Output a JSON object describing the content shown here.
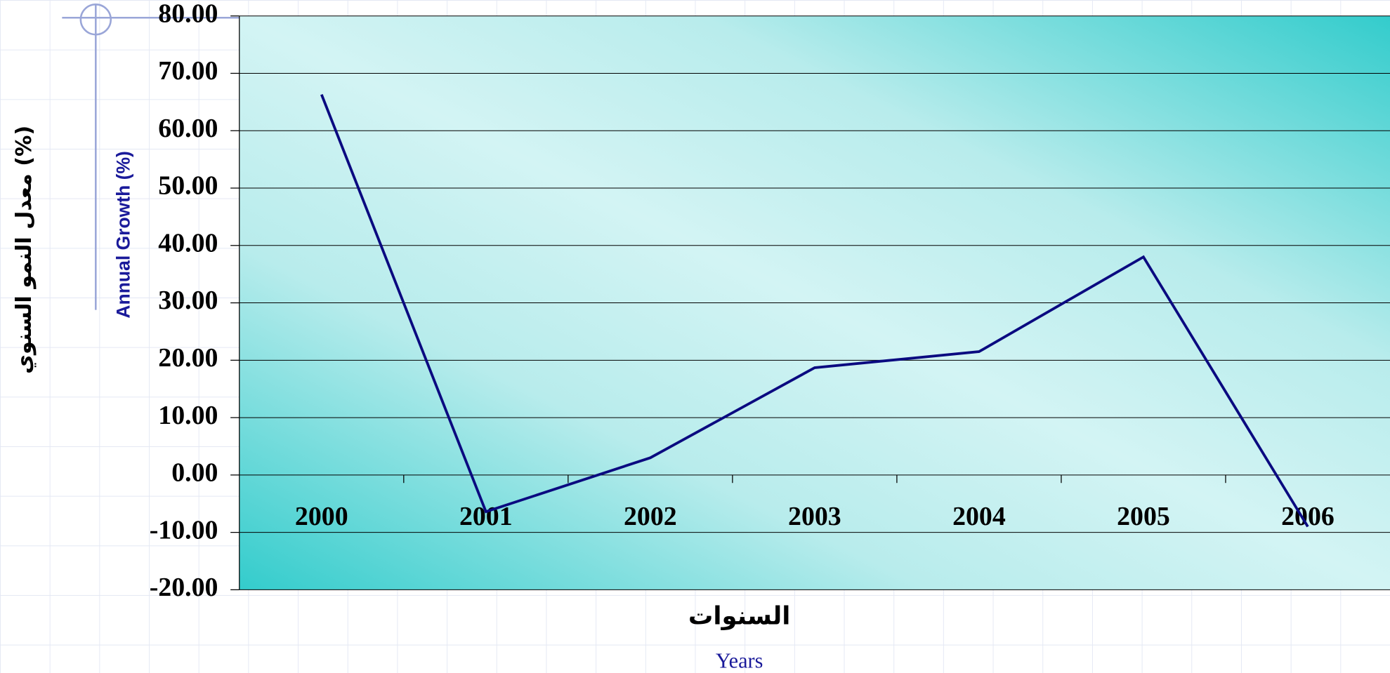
{
  "chart_data": {
    "type": "line",
    "y_label": "معدل النمو السنوي (%)",
    "y_label_en": "Annual Growth (%)",
    "x_label": "السنوات",
    "x_label_en": "Years",
    "categories": [
      "2000",
      "2001",
      "2002",
      "2003",
      "2004",
      "2005",
      "2006"
    ],
    "series": [
      {
        "name": "Annual Growth",
        "color": "#0a0a80",
        "values": [
          66.3,
          -6.4,
          3.0,
          18.7,
          21.5,
          38.0,
          -9.0
        ]
      }
    ],
    "ylim": [
      -20,
      80
    ],
    "yticks": [
      {
        "value": -20,
        "label": "-20.00"
      },
      {
        "value": -10,
        "label": "-10.00"
      },
      {
        "value": 0,
        "label": "0.00"
      },
      {
        "value": 10,
        "label": "10.00"
      },
      {
        "value": 20,
        "label": "20.00"
      },
      {
        "value": 30,
        "label": "30.00"
      },
      {
        "value": 40,
        "label": "40.00"
      },
      {
        "value": 50,
        "label": "50.00"
      },
      {
        "value": 60,
        "label": "60.00"
      },
      {
        "value": 70,
        "label": "70.00"
      },
      {
        "value": 80,
        "label": "80.00"
      }
    ],
    "grid": true
  }
}
